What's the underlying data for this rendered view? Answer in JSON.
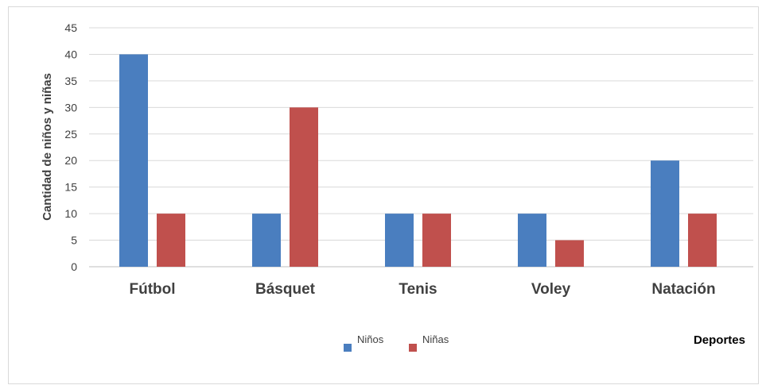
{
  "chart_data": {
    "type": "bar",
    "title": "",
    "xlabel": "Deportes",
    "ylabel": "Cantidad de niños y niñas",
    "ylim": [
      0,
      45
    ],
    "yticks": [
      0,
      5,
      10,
      15,
      20,
      25,
      30,
      35,
      40,
      45
    ],
    "grid": true,
    "legend_position": "bottom-center",
    "categories": [
      "Fútbol",
      "Básquet",
      "Tenis",
      "Voley",
      "Natación"
    ],
    "series": [
      {
        "name": "Niños",
        "color": "#4a7ebf",
        "values": [
          40,
          10,
          10,
          10,
          20
        ]
      },
      {
        "name": "Niñas",
        "color": "#c0504d",
        "values": [
          10,
          30,
          10,
          5,
          10
        ]
      }
    ]
  }
}
